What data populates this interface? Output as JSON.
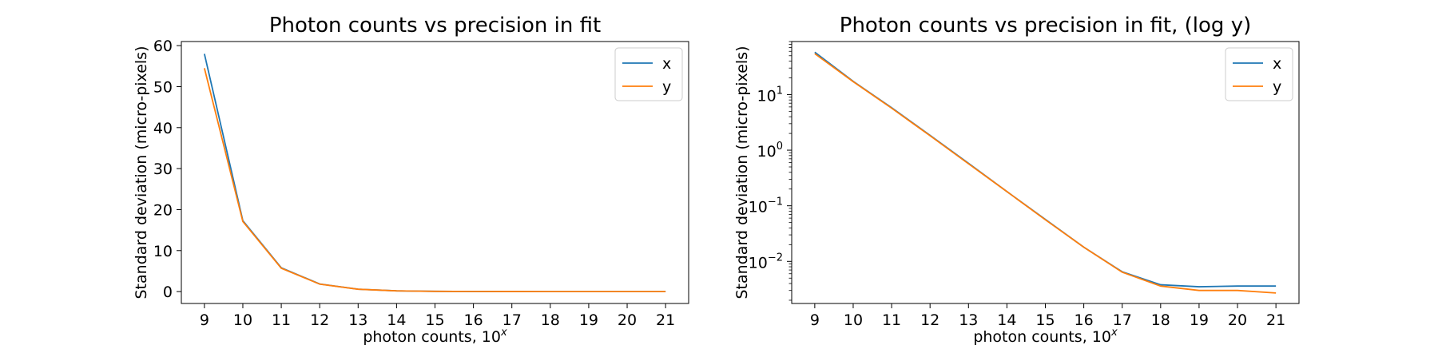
{
  "chart_data": [
    {
      "type": "line",
      "title": "Photon counts vs precision in fit",
      "xlabel": {
        "base": "photon counts, 10",
        "sup": "x"
      },
      "ylabel": "Standard deviation (micro-pixels)",
      "x": [
        9,
        10,
        11,
        12,
        13,
        14,
        15,
        16,
        17,
        18,
        19,
        20,
        21
      ],
      "xlim": [
        8.4,
        21.6
      ],
      "ylim": [
        -2.9,
        61
      ],
      "yscale": "linear",
      "yticks": [
        0,
        10,
        20,
        30,
        40,
        50,
        60
      ],
      "ytick_labels": [
        "0",
        "10",
        "20",
        "30",
        "40",
        "50",
        "60"
      ],
      "legend_position": "top-right",
      "series": [
        {
          "name": "x",
          "color": "#1f77b4",
          "values": [
            58,
            17.3,
            5.8,
            1.85,
            0.58,
            0.18,
            0.057,
            0.018,
            0.0065,
            0.0038,
            0.0035,
            0.0036,
            0.0036
          ]
        },
        {
          "name": "y",
          "color": "#ff7f0e",
          "values": [
            54.5,
            17.1,
            5.7,
            1.82,
            0.57,
            0.18,
            0.056,
            0.018,
            0.0064,
            0.0036,
            0.003,
            0.003,
            0.0027
          ]
        }
      ]
    },
    {
      "type": "line",
      "title": "Photon counts vs precision in fit, (log y)",
      "xlabel": {
        "base": "photon counts, 10",
        "sup": "x"
      },
      "ylabel": "Standard deviation (micro-pixels)",
      "x": [
        9,
        10,
        11,
        12,
        13,
        14,
        15,
        16,
        17,
        18,
        19,
        20,
        21
      ],
      "xlim": [
        8.4,
        21.6
      ],
      "ylim": [
        0.00175,
        90
      ],
      "yscale": "log",
      "yticks": [
        0.01,
        0.1,
        1,
        10
      ],
      "ytick_labels": [
        {
          "base": "10",
          "exp": "−2"
        },
        {
          "base": "10",
          "exp": "−1"
        },
        {
          "base": "10",
          "exp": "0"
        },
        {
          "base": "10",
          "exp": "1"
        }
      ],
      "legend_position": "top-right",
      "series": [
        {
          "name": "x",
          "color": "#1f77b4",
          "values": [
            58,
            17.3,
            5.8,
            1.85,
            0.58,
            0.18,
            0.057,
            0.018,
            0.0065,
            0.0038,
            0.0035,
            0.0036,
            0.0036
          ]
        },
        {
          "name": "y",
          "color": "#ff7f0e",
          "values": [
            54.5,
            17.1,
            5.7,
            1.82,
            0.57,
            0.18,
            0.056,
            0.018,
            0.0064,
            0.0036,
            0.003,
            0.003,
            0.0027
          ]
        }
      ]
    }
  ]
}
